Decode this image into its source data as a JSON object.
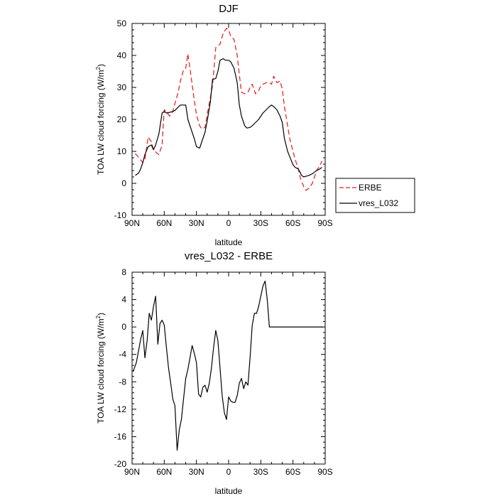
{
  "chart_data": [
    {
      "type": "line",
      "title": "DJF",
      "xlabel": "latitude",
      "ylabel": "TOA LW cloud forcing (W/m",
      "ylabel_sup": "2",
      "ylabel_end": ")",
      "xlim": [
        90,
        -90
      ],
      "ylim": [
        -10,
        50
      ],
      "xticks": [
        90,
        60,
        30,
        0,
        -30,
        -60,
        -90
      ],
      "xtick_labels": [
        "90N",
        "60N",
        "30N",
        "0",
        "30S",
        "60S",
        "90S"
      ],
      "yticks": [
        -10,
        0,
        10,
        20,
        30,
        40,
        50
      ],
      "ytick_labels": [
        "-10",
        "0",
        "10",
        "20",
        "30",
        "40",
        "50"
      ],
      "grid": false,
      "legend_placement": "right",
      "series": [
        {
          "name": "ERBE",
          "color": "#e31a1c",
          "dash": "dashed",
          "x": [
            87,
            84,
            80,
            78,
            75,
            72,
            70,
            67,
            65,
            62,
            60,
            58,
            55,
            52,
            50,
            47,
            45,
            42,
            40,
            38,
            35,
            32,
            30,
            27,
            25,
            22,
            20,
            18,
            15,
            12,
            10,
            8,
            5,
            2,
            0,
            -2,
            -5,
            -8,
            -10,
            -12,
            -15,
            -18,
            -20,
            -22,
            -25,
            -28,
            -30,
            -32,
            -35,
            -38,
            -40,
            -42,
            -45,
            -48,
            -50,
            -52,
            -55,
            -57,
            -60,
            -62,
            -65,
            -67,
            -70,
            -72,
            -75,
            -78,
            -80,
            -82,
            -85,
            -87
          ],
          "y": [
            9.3,
            8.2,
            6.5,
            7.5,
            14.5,
            13,
            10.5,
            9.5,
            9,
            12,
            23,
            22.5,
            21,
            22.5,
            25,
            28.5,
            32,
            35.5,
            36,
            40.5,
            33.5,
            26,
            21.5,
            18,
            17,
            17.5,
            21.5,
            25,
            30.5,
            42.5,
            43,
            43.5,
            47,
            48.5,
            48,
            46,
            45,
            40,
            34,
            28.5,
            28,
            28.5,
            30,
            31,
            28,
            29,
            30.5,
            31,
            31.5,
            31.5,
            31,
            33.5,
            31.5,
            32,
            29.5,
            24,
            18,
            14,
            10,
            7.5,
            4.5,
            1.5,
            -1,
            -2.2,
            -1.5,
            0,
            2,
            4,
            5.5,
            7
          ]
        },
        {
          "name": "vres_L032",
          "color": "#000000",
          "dash": "solid",
          "x": [
            87,
            84,
            82,
            80,
            78,
            75,
            72,
            70,
            68,
            65,
            62,
            60,
            58,
            55,
            52,
            50,
            48,
            45,
            42,
            40,
            38,
            35,
            32,
            30,
            27,
            25,
            22,
            20,
            17,
            15,
            12,
            10,
            8,
            5,
            3,
            0,
            -2,
            -5,
            -8,
            -10,
            -12,
            -15,
            -17,
            -20,
            -22,
            -25,
            -28,
            -30,
            -32,
            -35,
            -38,
            -40,
            -42,
            -45,
            -48,
            -50,
            -52,
            -55,
            -58,
            -60,
            -62,
            -65,
            -68,
            -70,
            -72,
            -75,
            -78,
            -80,
            -82,
            -85,
            -87
          ],
          "y": [
            2.5,
            3.2,
            4.5,
            6.5,
            9,
            11.5,
            12,
            10.5,
            12,
            15.5,
            22,
            22.5,
            22,
            22.2,
            22.5,
            22.8,
            23.5,
            24.5,
            24.5,
            24.5,
            20,
            17,
            14,
            11.5,
            11,
            13,
            16,
            19.5,
            25.5,
            32.5,
            32.8,
            35,
            38.5,
            39,
            38.5,
            38.5,
            38,
            36,
            31.5,
            24.5,
            21,
            18,
            17.3,
            17.5,
            18,
            19,
            20,
            21,
            22,
            23,
            24,
            24.5,
            24,
            23,
            21,
            19,
            14,
            10,
            7.5,
            5.8,
            5,
            4.5,
            2.5,
            2,
            2.2,
            2.5,
            3,
            3.5,
            4,
            4.5,
            5
          ]
        }
      ]
    },
    {
      "type": "line",
      "title": "vres_L032 - ERBE",
      "xlabel": "latitude",
      "ylabel": "TOA LW cloud forcing (W/m",
      "ylabel_sup": "2",
      "ylabel_end": ")",
      "xlim": [
        90,
        -90
      ],
      "ylim": [
        -20,
        8
      ],
      "xticks": [
        90,
        60,
        30,
        0,
        -30,
        -60,
        -90
      ],
      "xtick_labels": [
        "90N",
        "60N",
        "30N",
        "0",
        "30S",
        "60S",
        "90S"
      ],
      "yticks": [
        -20,
        -16,
        -12,
        -8,
        -4,
        0,
        4,
        8
      ],
      "ytick_labels": [
        "-20",
        "-16",
        "-12",
        "-8",
        "-4",
        "0",
        "4",
        "8"
      ],
      "grid": false,
      "series": [
        {
          "name": "",
          "color": "#000000",
          "dash": "solid",
          "x": [
            89,
            86,
            84,
            82,
            80,
            78,
            76,
            74,
            72,
            70,
            68,
            66,
            64,
            62,
            60,
            58,
            56,
            54,
            52,
            50,
            48,
            46,
            44,
            42,
            40,
            38,
            36,
            34,
            32,
            30,
            28,
            26,
            24,
            22,
            20,
            18,
            16,
            14,
            12,
            10,
            8,
            6,
            4,
            2,
            0,
            -2,
            -4,
            -6,
            -8,
            -10,
            -12,
            -14,
            -16,
            -18,
            -20,
            -22,
            -24,
            -26,
            -28,
            -30,
            -32,
            -34,
            -36,
            -38,
            -40,
            -42,
            -44,
            -46,
            -48,
            -50,
            -52,
            -54,
            -56,
            -58,
            -60,
            -62,
            -64,
            -66,
            -68,
            -70,
            -72,
            -74,
            -76,
            -78,
            -80,
            -82,
            -84,
            -86,
            -88
          ],
          "y": [
            -6.5,
            -5.2,
            -3.5,
            -1.8,
            -0.5,
            -4.5,
            -2,
            2,
            1,
            3,
            4.5,
            -2.5,
            0.5,
            1,
            0.3,
            -3,
            -6,
            -8.2,
            -10.5,
            -11.5,
            -18,
            -15,
            -13.5,
            -10.5,
            -7.5,
            -6.2,
            -4.5,
            -2.7,
            -3.8,
            -5.2,
            -9.8,
            -10.2,
            -8.8,
            -8.5,
            -9.5,
            -8.2,
            -6,
            -3,
            -0.5,
            -2,
            -6,
            -10,
            -12.5,
            -13.5,
            -10.2,
            -10.8,
            -11,
            -11,
            -10,
            -8.2,
            -7.5,
            -9,
            -8,
            -8.5,
            -4.5,
            0.2,
            2,
            2,
            3,
            4.5,
            6,
            6.7,
            4,
            0,
            0,
            0,
            0,
            0,
            0,
            0,
            0,
            0,
            0,
            0,
            0,
            0,
            0,
            0,
            0,
            0,
            0,
            0,
            0,
            0,
            0,
            0,
            0,
            0,
            0
          ]
        }
      ]
    }
  ],
  "legend": {
    "items": [
      {
        "label": "ERBE",
        "color": "#e31a1c",
        "dash": "dashed"
      },
      {
        "label": "vres_L032",
        "color": "#000000",
        "dash": "solid"
      }
    ]
  }
}
